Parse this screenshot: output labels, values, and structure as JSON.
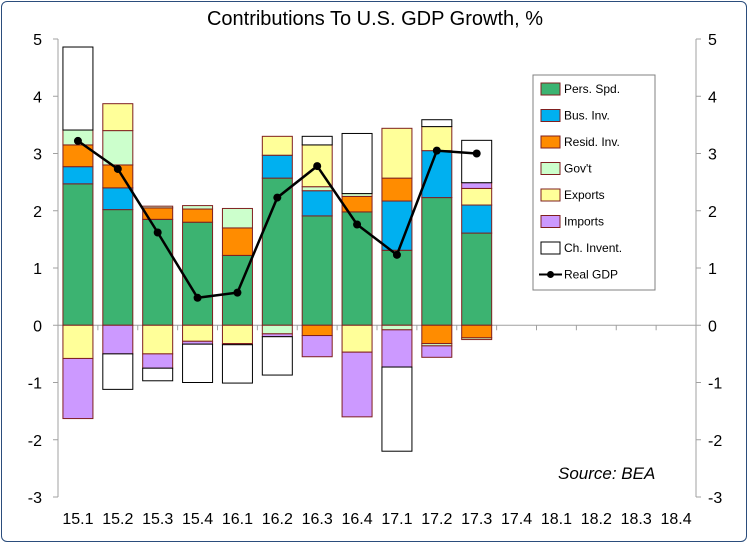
{
  "chart_data": {
    "type": "bar",
    "stacked": true,
    "title": "Contributions To U.S. GDP Growth, %",
    "source": "Source: BEA",
    "xlabel": "",
    "ylabel": "",
    "ylim": [
      -3,
      5
    ],
    "yticks": [
      5,
      4,
      3,
      2,
      1,
      0,
      -1,
      -2,
      -3
    ],
    "categories": [
      "15.1",
      "15.2",
      "15.3",
      "15.4",
      "16.1",
      "16.2",
      "16.3",
      "16.4",
      "17.1",
      "17.2",
      "17.3",
      "17.4",
      "18.1",
      "18.2",
      "18.3",
      "18.4"
    ],
    "colors": {
      "pers_spd": "#3cb371",
      "bus_inv": "#00b0f0",
      "resid_inv": "#ff8c00",
      "govt": "#ccffcc",
      "exports": "#ffff99",
      "imports": "#cc99ff",
      "ch_invent": "#ffffff",
      "real_gdp": "#000000",
      "bar_border": "#7f1f1f"
    },
    "series": [
      {
        "name": "Pers. Spd.",
        "key": "pers_spd",
        "values": [
          2.47,
          2.02,
          1.85,
          1.8,
          1.22,
          2.57,
          1.91,
          1.98,
          1.31,
          2.23,
          1.61,
          null,
          null,
          null,
          null,
          null
        ]
      },
      {
        "name": "Bus. Inv.",
        "key": "bus_inv",
        "values": [
          0.3,
          0.38,
          0.0,
          0.0,
          0.0,
          0.4,
          0.44,
          0.0,
          0.86,
          0.82,
          0.49,
          null,
          null,
          null,
          null,
          null
        ]
      },
      {
        "name": "Resid. Inv.",
        "key": "resid_inv",
        "values": [
          0.38,
          0.4,
          0.2,
          0.23,
          0.48,
          0.0,
          -0.18,
          0.27,
          0.4,
          -0.32,
          -0.22,
          null,
          null,
          null,
          null,
          null
        ]
      },
      {
        "name": "Gov't",
        "key": "govt",
        "values": [
          0.26,
          0.6,
          0.03,
          0.06,
          0.34,
          -0.15,
          0.07,
          0.05,
          -0.08,
          -0.04,
          -0.03,
          null,
          null,
          null,
          null,
          null
        ]
      },
      {
        "name": "Exports",
        "key": "exports",
        "values": [
          -0.58,
          0.47,
          -0.5,
          -0.28,
          -0.32,
          0.33,
          0.73,
          -0.47,
          0.87,
          0.42,
          0.29,
          null,
          null,
          null,
          null,
          null
        ]
      },
      {
        "name": "Imports",
        "key": "imports",
        "values": [
          -1.05,
          -0.5,
          -0.25,
          -0.05,
          -0.02,
          -0.05,
          -0.37,
          -1.13,
          -0.65,
          -0.2,
          0.1,
          null,
          null,
          null,
          null,
          null
        ]
      },
      {
        "name": "Ch. Invent.",
        "key": "ch_invent",
        "values": [
          1.45,
          -0.62,
          -0.22,
          -0.67,
          -0.67,
          -0.67,
          0.15,
          1.05,
          -1.47,
          0.12,
          0.74,
          null,
          null,
          null,
          null,
          null
        ]
      }
    ],
    "line": {
      "name": "Real GDP",
      "key": "real_gdp",
      "values": [
        3.22,
        2.73,
        1.62,
        0.48,
        0.57,
        2.23,
        2.78,
        1.76,
        1.23,
        3.05,
        3.0,
        null,
        null,
        null,
        null,
        null
      ]
    },
    "legend_position": "top-right",
    "grid": false
  }
}
